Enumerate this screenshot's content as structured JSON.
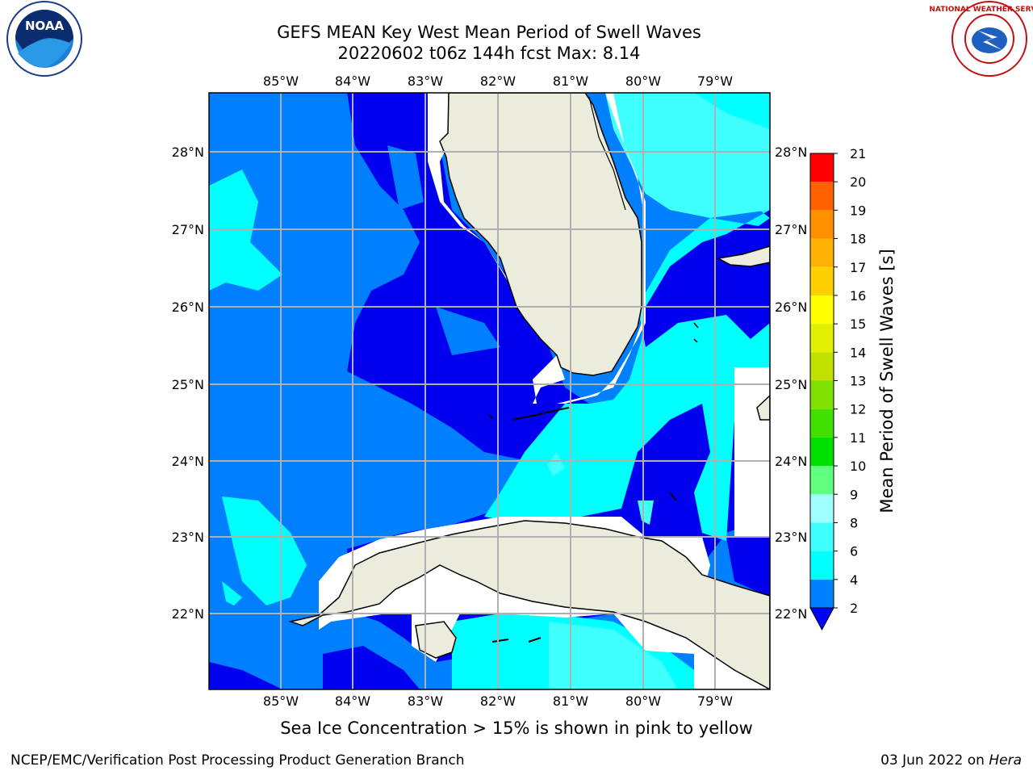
{
  "title_line1": "GEFS MEAN Key West Mean Period of Swell Waves",
  "title_line2": "20220602 t06z 144h fcst   Max: 8.14",
  "caption": "Sea Ice Concentration > 15% is shown in pink to yellow",
  "footer_left": "NCEP/EMC/Verification Post Processing Product Generation Branch",
  "footer_date": "03 Jun 2022 on ",
  "footer_machine": "Hera",
  "logos": {
    "left": "noaa-logo",
    "right": "nws-logo",
    "left_text": "NOAA",
    "right_text": "NATIONAL WEATHER SERVICE"
  },
  "map": {
    "lon_labels": [
      "85°W",
      "84°W",
      "83°W",
      "82°W",
      "81°W",
      "80°W",
      "79°W"
    ],
    "lat_labels": [
      "28°N",
      "27°N",
      "26°N",
      "25°N",
      "24°N",
      "23°N",
      "22°N"
    ],
    "land_color": "#ececdc",
    "grid_color": "#b0b0b0"
  },
  "colorbar": {
    "label": "Mean Period of Swell Waves [s]",
    "ticks": [
      "2",
      "4",
      "6",
      "8",
      "9",
      "10",
      "11",
      "12",
      "13",
      "14",
      "15",
      "16",
      "17",
      "18",
      "19",
      "20",
      "21"
    ],
    "colors": [
      "#0000ff",
      "#0080ff",
      "#00ffff",
      "#40ffff",
      "#a0ffff",
      "#60ff80",
      "#00e000",
      "#40e000",
      "#80e000",
      "#c0e000",
      "#e0f000",
      "#ffff00",
      "#ffd000",
      "#ffb000",
      "#ff9000",
      "#ff6000",
      "#ff3000",
      "#ff0000"
    ],
    "extend_color": "#0000ff"
  },
  "chart_data": {
    "type": "heatmap",
    "title": "GEFS MEAN Key West Mean Period of Swell Waves",
    "subtitle": "20220602 t06z 144h fcst   Max: 8.14",
    "variable": "Mean Period of Swell Waves [s]",
    "max": 8.14,
    "lon_range": [
      -86.0,
      -78.3
    ],
    "lat_range": [
      21.0,
      28.8
    ],
    "contour_levels": [
      2,
      4,
      6,
      8,
      9,
      10,
      11,
      12,
      13,
      14,
      15,
      16,
      17,
      18,
      19,
      20,
      21
    ],
    "regions": [
      {
        "area": "eastern Gulf of Mexico near Florida west coast",
        "range_s": "2-4"
      },
      {
        "area": "central Gulf of Mexico",
        "range_s": "4-6"
      },
      {
        "area": "western Gulf patches",
        "range_s": "6-8"
      },
      {
        "area": "Atlantic east of Florida",
        "range_s": "6-8"
      },
      {
        "area": "Florida Straits / south of Cuba",
        "range_s": "6-8"
      }
    ]
  }
}
